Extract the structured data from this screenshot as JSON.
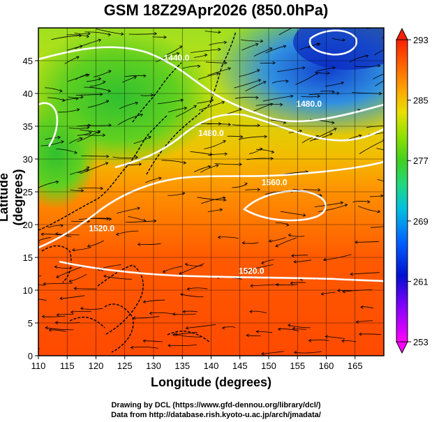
{
  "title": "GSM 18Z29Apr2026 (850.0hPa)",
  "xaxis": {
    "label": "Longitude (degrees)",
    "min": 110,
    "max": 170,
    "ticks": [
      110,
      115,
      120,
      125,
      130,
      135,
      140,
      145,
      150,
      155,
      160,
      165
    ]
  },
  "yaxis": {
    "label": "Latitude  (degrees)",
    "min": 0,
    "max": 50,
    "ticks": [
      0,
      5,
      10,
      15,
      20,
      25,
      30,
      35,
      40,
      45
    ]
  },
  "colorbar": {
    "min": 253,
    "max": 293,
    "ticks": [
      253,
      261,
      269,
      277,
      285,
      293
    ]
  },
  "contours": [
    {
      "label": "1440.0",
      "lon": 134,
      "lat": 45
    },
    {
      "label": "1480.0",
      "lon": 140,
      "lat": 33.5
    },
    {
      "label": "1480.0",
      "lon": 157,
      "lat": 38
    },
    {
      "label": "1560.0",
      "lon": 151,
      "lat": 26
    },
    {
      "label": "1520.0",
      "lon": 121,
      "lat": 19
    },
    {
      "label": "1520.0",
      "lon": 147,
      "lat": 12.5
    }
  ],
  "credits": {
    "line1": "Drawing by DCL (https://www.gfd-dennou.org/library/dcl/)",
    "line2": "Data from http://database.rish.kyoto-u.ac.jp/arch/jmadata/"
  }
}
